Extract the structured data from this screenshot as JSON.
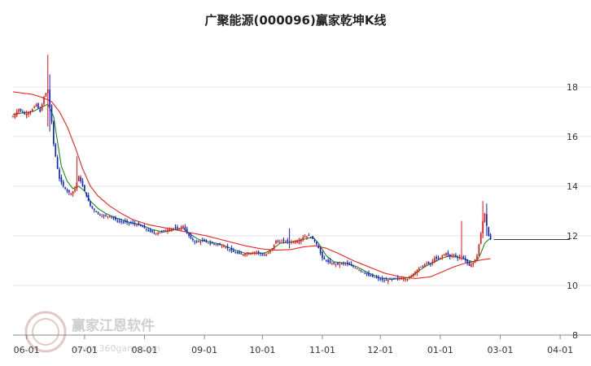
{
  "chart_data": {
    "type": "candlestick",
    "title": "广聚能源(000096)赢家乾坤K线",
    "xlabel": "",
    "ylabel": "",
    "ylim": [
      8,
      19.6
    ],
    "y_ticks": [
      {
        "value": 18,
        "label": "18"
      },
      {
        "value": 16,
        "label": "16"
      },
      {
        "value": 14,
        "label": "14"
      },
      {
        "value": 12,
        "label": "12"
      },
      {
        "value": 10,
        "label": "10"
      },
      {
        "value": 8,
        "label": "8"
      }
    ],
    "x_ticks": [
      {
        "day": 7,
        "label": "06-01"
      },
      {
        "day": 37,
        "label": "07-01"
      },
      {
        "day": 68,
        "label": "08-01"
      },
      {
        "day": 99,
        "label": "09-01"
      },
      {
        "day": 129,
        "label": "10-01"
      },
      {
        "day": 160,
        "label": "11-01"
      },
      {
        "day": 190,
        "label": "12-01"
      },
      {
        "day": 221,
        "label": "01-01"
      },
      {
        "day": 252,
        "label": "03-01"
      },
      {
        "day": 283,
        "label": "04-01"
      }
    ],
    "x_range": [
      0,
      288
    ],
    "grid": "horizontal",
    "last_price": 11.85,
    "candle_colors": {
      "up": "#ee1111",
      "down": "#1122cc"
    },
    "ma_short_color": "#1a8a1a",
    "ma_long_color": "#ee2222",
    "price_path": [
      [
        0,
        16.8
      ],
      [
        3,
        17.1
      ],
      [
        6,
        16.9
      ],
      [
        9,
        17.0
      ],
      [
        12,
        17.3
      ],
      [
        14,
        17.0
      ],
      [
        16,
        17.6
      ],
      [
        18,
        17.9
      ],
      [
        19,
        17.2
      ],
      [
        20,
        16.6
      ],
      [
        21,
        15.7
      ],
      [
        22,
        15.2
      ],
      [
        23,
        14.7
      ],
      [
        24,
        14.3
      ],
      [
        26,
        14.0
      ],
      [
        28,
        13.8
      ],
      [
        30,
        13.7
      ],
      [
        32,
        13.9
      ],
      [
        34,
        14.4
      ],
      [
        36,
        14.0
      ],
      [
        38,
        13.6
      ],
      [
        40,
        13.2
      ],
      [
        43,
        12.95
      ],
      [
        46,
        12.8
      ],
      [
        50,
        12.8
      ],
      [
        54,
        12.6
      ],
      [
        58,
        12.55
      ],
      [
        62,
        12.5
      ],
      [
        66,
        12.4
      ],
      [
        70,
        12.2
      ],
      [
        74,
        12.1
      ],
      [
        78,
        12.2
      ],
      [
        82,
        12.3
      ],
      [
        86,
        12.3
      ],
      [
        88,
        12.4
      ],
      [
        90,
        12.1
      ],
      [
        92,
        11.9
      ],
      [
        94,
        11.75
      ],
      [
        98,
        11.8
      ],
      [
        102,
        11.7
      ],
      [
        106,
        11.65
      ],
      [
        110,
        11.55
      ],
      [
        114,
        11.35
      ],
      [
        118,
        11.25
      ],
      [
        122,
        11.3
      ],
      [
        126,
        11.35
      ],
      [
        130,
        11.2
      ],
      [
        132,
        11.3
      ],
      [
        134,
        11.5
      ],
      [
        136,
        11.8
      ],
      [
        138,
        11.75
      ],
      [
        140,
        11.8
      ],
      [
        144,
        11.75
      ],
      [
        148,
        11.8
      ],
      [
        150,
        11.95
      ],
      [
        153,
        12.0
      ],
      [
        156,
        11.8
      ],
      [
        158,
        11.5
      ],
      [
        160,
        11.1
      ],
      [
        164,
        10.9
      ],
      [
        168,
        10.85
      ],
      [
        172,
        10.9
      ],
      [
        176,
        10.75
      ],
      [
        180,
        10.6
      ],
      [
        184,
        10.4
      ],
      [
        188,
        10.3
      ],
      [
        192,
        10.2
      ],
      [
        196,
        10.25
      ],
      [
        200,
        10.3
      ],
      [
        204,
        10.25
      ],
      [
        206,
        10.4
      ],
      [
        208,
        10.55
      ],
      [
        210,
        10.7
      ],
      [
        212,
        10.8
      ],
      [
        214,
        10.9
      ],
      [
        216,
        10.85
      ],
      [
        218,
        11.1
      ],
      [
        220,
        11.05
      ],
      [
        222,
        11.2
      ],
      [
        224,
        11.3
      ],
      [
        226,
        11.15
      ],
      [
        228,
        11.25
      ],
      [
        230,
        11.1
      ],
      [
        232,
        11.2
      ],
      [
        234,
        11.0
      ],
      [
        236,
        10.8
      ],
      [
        238,
        10.9
      ],
      [
        240,
        11.2
      ],
      [
        242,
        12.1
      ],
      [
        243,
        12.6
      ],
      [
        244,
        12.9
      ],
      [
        245,
        12.4
      ],
      [
        246,
        12.0
      ],
      [
        247,
        11.85
      ]
    ],
    "ma_short": [
      [
        0,
        16.9
      ],
      [
        10,
        17.0
      ],
      [
        18,
        17.3
      ],
      [
        21,
        16.8
      ],
      [
        23,
        15.8
      ],
      [
        25,
        14.8
      ],
      [
        28,
        14.2
      ],
      [
        31,
        13.9
      ],
      [
        34,
        14.0
      ],
      [
        37,
        13.8
      ],
      [
        40,
        13.4
      ],
      [
        44,
        13.1
      ],
      [
        48,
        12.9
      ],
      [
        54,
        12.7
      ],
      [
        60,
        12.55
      ],
      [
        66,
        12.45
      ],
      [
        72,
        12.25
      ],
      [
        78,
        12.15
      ],
      [
        84,
        12.25
      ],
      [
        88,
        12.3
      ],
      [
        92,
        12.05
      ],
      [
        96,
        11.85
      ],
      [
        102,
        11.75
      ],
      [
        108,
        11.65
      ],
      [
        114,
        11.45
      ],
      [
        120,
        11.3
      ],
      [
        126,
        11.3
      ],
      [
        130,
        11.3
      ],
      [
        134,
        11.45
      ],
      [
        138,
        11.7
      ],
      [
        144,
        11.75
      ],
      [
        150,
        11.85
      ],
      [
        155,
        11.95
      ],
      [
        158,
        11.7
      ],
      [
        162,
        11.2
      ],
      [
        166,
        10.95
      ],
      [
        172,
        10.9
      ],
      [
        178,
        10.75
      ],
      [
        184,
        10.5
      ],
      [
        190,
        10.3
      ],
      [
        196,
        10.25
      ],
      [
        202,
        10.28
      ],
      [
        206,
        10.35
      ],
      [
        210,
        10.6
      ],
      [
        214,
        10.8
      ],
      [
        218,
        10.95
      ],
      [
        222,
        11.1
      ],
      [
        226,
        11.2
      ],
      [
        230,
        11.15
      ],
      [
        234,
        11.05
      ],
      [
        238,
        10.95
      ],
      [
        240,
        11.0
      ],
      [
        242,
        11.3
      ],
      [
        244,
        11.7
      ],
      [
        246,
        11.85
      ],
      [
        247,
        11.9
      ]
    ],
    "ma_long": [
      [
        0,
        17.8
      ],
      [
        10,
        17.7
      ],
      [
        16,
        17.55
      ],
      [
        20,
        17.4
      ],
      [
        24,
        17.0
      ],
      [
        28,
        16.4
      ],
      [
        32,
        15.6
      ],
      [
        36,
        14.7
      ],
      [
        40,
        14.0
      ],
      [
        44,
        13.6
      ],
      [
        50,
        13.2
      ],
      [
        56,
        12.9
      ],
      [
        62,
        12.65
      ],
      [
        70,
        12.45
      ],
      [
        80,
        12.3
      ],
      [
        90,
        12.15
      ],
      [
        100,
        12.0
      ],
      [
        110,
        11.8
      ],
      [
        120,
        11.6
      ],
      [
        128,
        11.48
      ],
      [
        136,
        11.42
      ],
      [
        144,
        11.45
      ],
      [
        150,
        11.55
      ],
      [
        156,
        11.6
      ],
      [
        162,
        11.5
      ],
      [
        168,
        11.3
      ],
      [
        176,
        11.0
      ],
      [
        184,
        10.75
      ],
      [
        192,
        10.5
      ],
      [
        200,
        10.35
      ],
      [
        208,
        10.28
      ],
      [
        216,
        10.35
      ],
      [
        222,
        10.55
      ],
      [
        228,
        10.75
      ],
      [
        234,
        10.9
      ],
      [
        240,
        11.0
      ],
      [
        244,
        11.05
      ],
      [
        247,
        11.08
      ]
    ],
    "wicks": [
      {
        "day": 18,
        "high": 19.3,
        "low": 16.4
      },
      {
        "day": 19,
        "high": 18.5,
        "low": 16.2
      },
      {
        "day": 20,
        "high": 17.3,
        "low": 16.5
      },
      {
        "day": 33,
        "high": 15.2,
        "low": 13.9
      },
      {
        "day": 143,
        "high": 12.3,
        "low": 11.5
      },
      {
        "day": 232,
        "high": 12.6,
        "low": 11.0
      },
      {
        "day": 243,
        "high": 13.4,
        "low": 11.9
      },
      {
        "day": 245,
        "high": 13.3,
        "low": 12.0
      }
    ]
  },
  "watermark": {
    "brand_text": "赢家江恩软件",
    "url_text": "www.360gann.com",
    "logo_color": "#e4c8c8"
  }
}
